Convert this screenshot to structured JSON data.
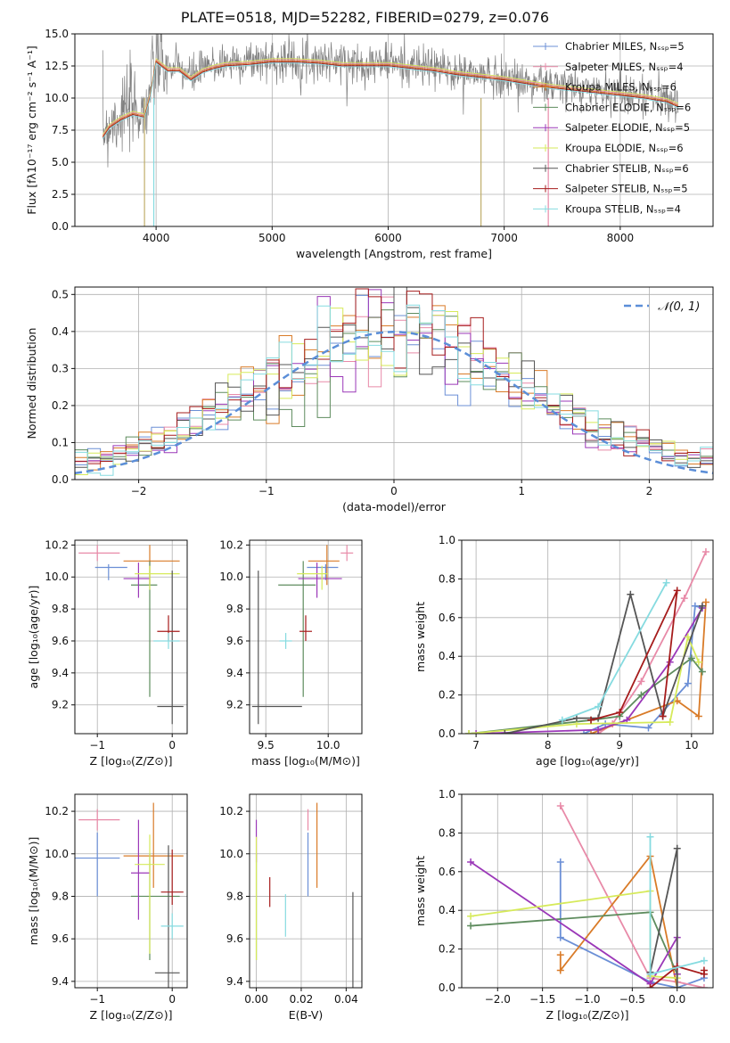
{
  "title": "PLATE=0518, MJD=52282, FIBERID=0279, z=0.076",
  "series_colors": [
    "#6b8fd6",
    "#e88aa8",
    "#d97b28",
    "#5e8c5e",
    "#9b38b8",
    "#d6ea5a",
    "#555555",
    "#a61c1c",
    "#86dbe0"
  ],
  "chart_data": [
    {
      "id": "spectrum",
      "type": "line",
      "xlabel": "wavelength [Angstrom, rest frame]",
      "ylabel": "Flux [fλ10⁻¹⁷ erg cm⁻² s⁻¹ A⁻¹]",
      "xlim": [
        3300,
        8800
      ],
      "ylim": [
        0,
        15
      ],
      "xticks": [
        4000,
        5000,
        6000,
        7000,
        8000
      ],
      "yticks": [
        0.0,
        2.5,
        5.0,
        7.5,
        10.0,
        12.5,
        15.0
      ],
      "legend_position": "top-right",
      "legend": [
        "Chabrier MILES, Nₛₛₚ=5",
        "Salpeter MILES, Nₛₛₚ=4",
        "Kroupa MILES, Nₛₛₚ=6",
        "Chabrier ELODIE, Nₛₛₚ=6",
        "Salpeter ELODIE, Nₛₛₚ=5",
        "Kroupa ELODIE, Nₛₛₚ=6",
        "Chabrier STELIB, Nₛₛₚ=6",
        "Salpeter STELIB, Nₛₛₚ=5",
        "Kroupa STELIB, Nₛₛₚ=4"
      ],
      "data_flux_wavelength": [
        3540,
        3600,
        3700,
        3800,
        3900,
        3950,
        4000,
        4100,
        4200,
        4300,
        4400,
        4500,
        4600,
        4800,
        5000,
        5200,
        5400,
        5600,
        5800,
        6000,
        6200,
        6400,
        6600,
        6800,
        7000,
        7200,
        7400,
        7600,
        7800,
        8000,
        8200,
        8400,
        8500
      ],
      "data_flux_values": [
        7.5,
        8.0,
        8.8,
        9.2,
        9.0,
        10.5,
        12.8,
        12.3,
        12.4,
        11.6,
        12.2,
        12.6,
        12.8,
        12.9,
        13.0,
        13.0,
        13.0,
        12.8,
        12.7,
        12.8,
        12.5,
        12.4,
        12.0,
        11.8,
        11.6,
        11.3,
        11.0,
        10.8,
        10.6,
        10.5,
        10.3,
        10.0,
        9.6
      ],
      "model_flux_values": [
        7.0,
        7.8,
        8.4,
        8.8,
        8.6,
        10.2,
        12.9,
        12.2,
        12.2,
        11.5,
        12.1,
        12.4,
        12.6,
        12.7,
        12.9,
        12.9,
        12.8,
        12.6,
        12.6,
        12.6,
        12.4,
        12.2,
        11.9,
        11.7,
        11.5,
        11.2,
        10.9,
        10.7,
        10.5,
        10.3,
        10.1,
        9.8,
        9.4
      ]
    },
    {
      "id": "residuals",
      "type": "histogram",
      "xlabel": "(data-model)/error",
      "ylabel": "Normed distribution",
      "xlim": [
        -2.5,
        2.5
      ],
      "ylim": [
        0,
        0.52
      ],
      "xticks": [
        -2,
        -1,
        0,
        1,
        2
      ],
      "yticks": [
        0.0,
        0.1,
        0.2,
        0.3,
        0.4,
        0.5
      ],
      "legend": [
        "𝒩(0, 1)"
      ],
      "legend_position": "top-right",
      "bin_width": 0.1
    },
    {
      "id": "age-vs-z",
      "type": "errorbar",
      "xlabel": "Z [log₁₀(Z/Z⊙)]",
      "ylabel": "age  [log₁₀(age/yr)]",
      "xlim": [
        -1.3,
        0.2
      ],
      "ylim": [
        9.02,
        10.23
      ],
      "xticks": [
        -1,
        0
      ],
      "yticks": [
        9.2,
        9.4,
        9.6,
        9.8,
        10.0,
        10.2
      ],
      "points": [
        {
          "x": -0.85,
          "y": 10.06,
          "xerr": [
            0.18,
            0.25
          ],
          "yerr": [
            0.08,
            0.02
          ]
        },
        {
          "x": -1.0,
          "y": 10.15,
          "xerr": [
            0.25,
            0.3
          ],
          "yerr": [
            0.05,
            0.05
          ]
        },
        {
          "x": -0.3,
          "y": 10.1,
          "xerr": [
            0.35,
            0.4
          ],
          "yerr": [
            0.15,
            0.1
          ]
        },
        {
          "x": -0.3,
          "y": 9.95,
          "xerr": [
            0.25,
            0.1
          ],
          "yerr": [
            0.7,
            0.15
          ]
        },
        {
          "x": -0.45,
          "y": 9.99,
          "xerr": [
            0.2,
            0.15
          ],
          "yerr": [
            0.12,
            0.1
          ]
        },
        {
          "x": -0.3,
          "y": 10.02,
          "xerr": [
            0.2,
            0.4
          ],
          "yerr": [
            0.1,
            0.05
          ]
        },
        {
          "x": 0.0,
          "y": 9.19,
          "xerr": [
            0.2,
            0.15
          ],
          "yerr": [
            0.11,
            0.85
          ]
        },
        {
          "x": -0.05,
          "y": 9.66,
          "xerr": [
            0.15,
            0.15
          ],
          "yerr": [
            0.06,
            0.1
          ]
        },
        {
          "x": -0.05,
          "y": 9.6,
          "xerr": [
            0.2,
            0.15
          ],
          "yerr": [
            0.05,
            0.05
          ]
        }
      ]
    },
    {
      "id": "age-vs-mass",
      "type": "errorbar",
      "xlabel": "mass [log₁₀(M/M⊙)]",
      "ylabel": "",
      "xlim": [
        9.37,
        10.27
      ],
      "ylim": [
        9.02,
        10.23
      ],
      "xticks": [
        9.5,
        10.0
      ],
      "yticks": [
        9.2,
        9.4,
        9.6,
        9.8,
        10.0,
        10.2
      ],
      "points": [
        {
          "x": 9.98,
          "y": 10.06,
          "xerr": [
            0.15,
            0.1
          ],
          "yerr": [
            0.08,
            0.02
          ]
        },
        {
          "x": 10.15,
          "y": 10.15,
          "xerr": [
            0.05,
            0.05
          ],
          "yerr": [
            0.05,
            0.05
          ]
        },
        {
          "x": 9.99,
          "y": 10.1,
          "xerr": [
            0.15,
            0.1
          ],
          "yerr": [
            0.15,
            0.1
          ]
        },
        {
          "x": 9.8,
          "y": 9.95,
          "xerr": [
            0.2,
            0.1
          ],
          "yerr": [
            0.7,
            0.15
          ]
        },
        {
          "x": 9.91,
          "y": 9.99,
          "xerr": [
            0.15,
            0.2
          ],
          "yerr": [
            0.12,
            0.1
          ]
        },
        {
          "x": 9.95,
          "y": 10.02,
          "xerr": [
            0.2,
            0.05
          ],
          "yerr": [
            0.1,
            0.05
          ]
        },
        {
          "x": 9.44,
          "y": 9.19,
          "xerr": [
            0.05,
            0.35
          ],
          "yerr": [
            0.11,
            0.85
          ]
        },
        {
          "x": 9.82,
          "y": 9.66,
          "xerr": [
            0.05,
            0.05
          ],
          "yerr": [
            0.06,
            0.1
          ]
        },
        {
          "x": 9.66,
          "y": 9.6,
          "xerr": [
            0.05,
            0.05
          ],
          "yerr": [
            0.05,
            0.05
          ]
        }
      ]
    },
    {
      "id": "massweight-vs-age",
      "type": "line",
      "xlabel": "age  [log₁₀(age/yr)]",
      "ylabel": "mass weight",
      "xlim": [
        6.8,
        10.3
      ],
      "ylim": [
        0,
        1
      ],
      "xticks": [
        7,
        8,
        9,
        10
      ],
      "yticks": [
        0.0,
        0.2,
        0.4,
        0.6,
        0.8,
        1.0
      ],
      "series": [
        {
          "x": [
            8.5,
            8.8,
            9.4,
            9.95,
            10.05,
            10.15
          ],
          "y": [
            0.0,
            0.05,
            0.03,
            0.26,
            0.66,
            0.65
          ]
        },
        {
          "x": [
            8.7,
            8.9,
            9.3,
            9.9,
            10.2
          ],
          "y": [
            0.0,
            0.05,
            0.27,
            0.7,
            0.94
          ]
        },
        {
          "x": [
            8.6,
            9.8,
            10.1,
            10.2
          ],
          "y": [
            0.0,
            0.17,
            0.09,
            0.68
          ]
        },
        {
          "x": [
            6.9,
            8.6,
            9.0,
            9.3,
            10.0,
            10.15
          ],
          "y": [
            0.0,
            0.07,
            0.09,
            0.2,
            0.39,
            0.32
          ]
        },
        {
          "x": [
            7.0,
            8.7,
            9.1,
            9.7,
            10.15
          ],
          "y": [
            0.0,
            0.02,
            0.07,
            0.37,
            0.65
          ]
        },
        {
          "x": [
            6.9,
            8.4,
            9.7,
            9.95,
            10.1
          ],
          "y": [
            0.0,
            0.05,
            0.06,
            0.5,
            0.37
          ]
        },
        {
          "x": [
            7.4,
            8.4,
            8.7,
            9.15,
            9.6,
            10.15
          ],
          "y": [
            0.0,
            0.08,
            0.08,
            0.72,
            0.09,
            0.66
          ]
        },
        {
          "x": [
            8.6,
            9.0,
            9.8,
            9.6
          ],
          "y": [
            0.07,
            0.11,
            0.74,
            0.09
          ]
        },
        {
          "x": [
            8.2,
            8.7,
            9.65
          ],
          "y": [
            0.07,
            0.14,
            0.78
          ]
        }
      ]
    },
    {
      "id": "mass-vs-z",
      "type": "errorbar",
      "xlabel": "Z [log₁₀(Z/Z⊙)]",
      "ylabel": "mass [log₁₀(M/M⊙)]",
      "xlim": [
        -1.3,
        0.2
      ],
      "ylim": [
        9.37,
        10.28
      ],
      "xticks": [
        -1,
        0
      ],
      "yticks": [
        9.4,
        9.6,
        9.8,
        10.0,
        10.2
      ],
      "points": [
        {
          "x": -1.0,
          "y": 9.98,
          "xerr": [
            0.3,
            0.3
          ],
          "yerr": [
            0.18,
            0.12
          ]
        },
        {
          "x": -1.0,
          "y": 10.16,
          "xerr": [
            0.25,
            0.3
          ],
          "yerr": [
            0.05,
            0.05
          ]
        },
        {
          "x": -0.25,
          "y": 9.99,
          "xerr": [
            0.4,
            0.4
          ],
          "yerr": [
            0.15,
            0.25
          ]
        },
        {
          "x": -0.3,
          "y": 9.8,
          "xerr": [
            0.25,
            0.4
          ],
          "yerr": [
            0.3,
            0.2
          ]
        },
        {
          "x": -0.45,
          "y": 9.91,
          "xerr": [
            0.1,
            0.15
          ],
          "yerr": [
            0.22,
            0.25
          ]
        },
        {
          "x": -0.3,
          "y": 9.95,
          "xerr": [
            0.2,
            0.2
          ],
          "yerr": [
            0.42,
            0.14
          ]
        },
        {
          "x": -0.05,
          "y": 9.44,
          "xerr": [
            0.18,
            0.15
          ],
          "yerr": [
            0.08,
            0.6
          ]
        },
        {
          "x": 0.0,
          "y": 9.82,
          "xerr": [
            0.15,
            0.15
          ],
          "yerr": [
            0.06,
            0.2
          ]
        },
        {
          "x": 0.0,
          "y": 9.66,
          "xerr": [
            0.15,
            0.15
          ],
          "yerr": [
            0.06,
            0.06
          ]
        }
      ]
    },
    {
      "id": "mass-vs-ebv",
      "type": "errorbar",
      "xlabel": "E(B-V)",
      "ylabel": "",
      "xlim": [
        -0.003,
        0.047
      ],
      "ylim": [
        9.37,
        10.28
      ],
      "xticks": [
        0.0,
        0.02,
        0.04
      ],
      "yticks": [
        9.4,
        9.6,
        9.8,
        10.0,
        10.2
      ],
      "points": [
        {
          "x": 0.023,
          "y": 9.98,
          "xerr": [
            0,
            0
          ],
          "yerr": [
            0.18,
            0.12
          ]
        },
        {
          "x": 0.023,
          "y": 10.16,
          "xerr": [
            0,
            0
          ],
          "yerr": [
            0.05,
            0.05
          ]
        },
        {
          "x": 0.027,
          "y": 9.99,
          "xerr": [
            0,
            0
          ],
          "yerr": [
            0.15,
            0.25
          ]
        },
        {
          "x": 0.0,
          "y": 9.8,
          "xerr": [
            0,
            0
          ],
          "yerr": [
            0.3,
            0.2
          ]
        },
        {
          "x": 0.0,
          "y": 10.06,
          "xerr": [
            0,
            0
          ],
          "yerr": [
            0.1,
            0.1
          ]
        },
        {
          "x": 0.0,
          "y": 9.9,
          "xerr": [
            0,
            0
          ],
          "yerr": [
            0.4,
            0.18
          ]
        },
        {
          "x": 0.043,
          "y": 9.44,
          "xerr": [
            0,
            0
          ],
          "yerr": [
            0.08,
            0.38
          ]
        },
        {
          "x": 0.006,
          "y": 9.82,
          "xerr": [
            0,
            0
          ],
          "yerr": [
            0.07,
            0.07
          ]
        },
        {
          "x": 0.013,
          "y": 9.66,
          "xerr": [
            0,
            0
          ],
          "yerr": [
            0.05,
            0.15
          ]
        }
      ]
    },
    {
      "id": "massweight-vs-z",
      "type": "line",
      "xlabel": "Z [log₁₀(Z/Z⊙)]",
      "ylabel": "mass weight",
      "xlim": [
        -2.4,
        0.4
      ],
      "ylim": [
        0,
        1
      ],
      "xticks": [
        -2.0,
        -1.5,
        -1.0,
        -0.5,
        0.0
      ],
      "yticks": [
        0.0,
        0.2,
        0.4,
        0.6,
        0.8,
        1.0
      ],
      "series": [
        {
          "x": [
            -1.3,
            -1.3,
            -0.3,
            0.0,
            0.3
          ],
          "y": [
            0.65,
            0.26,
            0.03,
            0.0,
            0.05
          ]
        },
        {
          "x": [
            -1.3,
            -0.3,
            0.0,
            0.3
          ],
          "y": [
            0.94,
            0.05,
            0.03,
            0.0
          ]
        },
        {
          "x": [
            -1.3,
            -1.3,
            -0.3,
            0.0
          ],
          "y": [
            0.17,
            0.09,
            0.68,
            0.0
          ]
        },
        {
          "x": [
            -2.3,
            -0.3,
            0.0,
            0.0
          ],
          "y": [
            0.32,
            0.39,
            0.07,
            0.0
          ]
        },
        {
          "x": [
            -2.3,
            -0.3,
            0.0,
            0.0
          ],
          "y": [
            0.65,
            0.02,
            0.26,
            0.07
          ]
        },
        {
          "x": [
            -2.3,
            -0.3,
            -0.3,
            0.0
          ],
          "y": [
            0.37,
            0.5,
            0.06,
            0.05
          ]
        },
        {
          "x": [
            -0.3,
            0.0,
            0.0
          ],
          "y": [
            0.08,
            0.72,
            0.0
          ]
        },
        {
          "x": [
            -0.3,
            0.0,
            0.3,
            0.3
          ],
          "y": [
            0.0,
            0.11,
            0.07,
            0.09
          ]
        },
        {
          "x": [
            -0.3,
            -0.3,
            0.3
          ],
          "y": [
            0.78,
            0.07,
            0.14
          ]
        }
      ]
    }
  ]
}
